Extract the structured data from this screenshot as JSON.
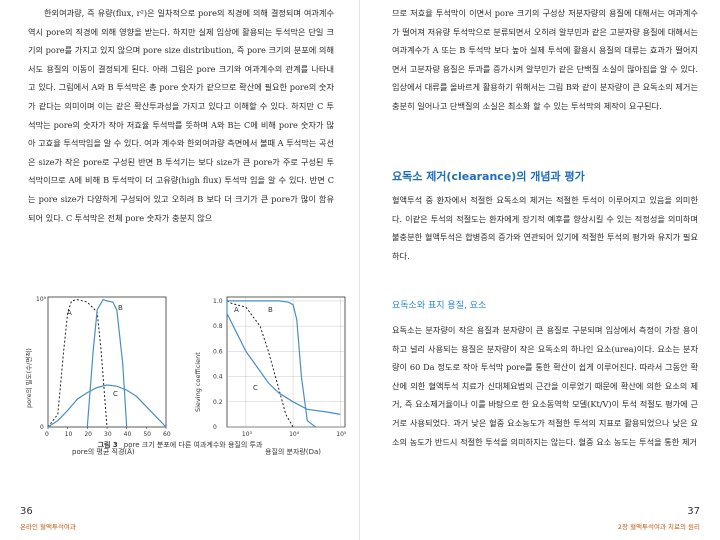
{
  "left_page": {
    "paragraph": "한외여과량, 즉 유량(flux, r²)은 일차적으로 pore의 직경에 의해 결정되며 여과계수 역시 pore의 직경에 의해 영향을 받는다. 하지만 실제 임상에 활용되는 투석막은 단일 크기의 pore를 가지고 있지 않으며 pore size distribution, 즉 pore 크기의 분포에 의해서도 용질의 이동이 결정되게 된다. 아래 그림은 pore 크기와 여과계수의 관계를 나타내고 있다. 그림에서 A와 B 투석막은 총 pore 숫자가 같으므로 확산에 필요한 pore의 숫자가 같다는 의미이며 이는 같은 확산투과성을 가지고 있다고 이해할 수 있다. 하지만 C 투석막는 pore의 숫자가 작아 저효율 투석막를 뜻하며 A와 B는 C에 비해 pore 숫자가 많아 고효율 투석막임을 알 수 있다. 여과 계수와 한외여과량 측면에서 볼때 A 투석막는 곡선은 size가 작은 pore로 구성된 반면 B 투석기는 보다 size가 큰 pore가 주로 구성된 투석막이므로 A에 비해 B 투석막이 더 고유량(high flux) 투석막 임을 알 수 있다. 반면 C는 pore size가 다양하게 구성되어 있고 오히려 B 보다 더 크기가 큰 pore가 많이 함유되어 있다. C 투석막은 전체 pore 숫자가 충분치 않으",
    "page_number": "36",
    "running_head": "온라인 혈액투석여과"
  },
  "figure": {
    "caption_label": "그림 3",
    "caption_text": "pore 크기 분포에 다른 여과계수와 용질의 투과",
    "left_plot": {
      "ylabel": "pore의 밀도(수/면적)",
      "xlabel": "pore의 평균 직경(Å)",
      "ytick_top": "10⁹",
      "ytick_bottom": "0",
      "xticks": [
        "0",
        "10",
        "20",
        "30",
        "40",
        "50",
        "60"
      ],
      "labels": {
        "A": "A",
        "B": "B",
        "C": "C"
      }
    },
    "right_plot": {
      "ylabel": "Sieving coefficient",
      "xlabel": "용질의 분자량(Da)",
      "yticks": [
        "1.0",
        "0.8",
        "0.6",
        "0.4",
        "0.2",
        "0"
      ],
      "xticks": [
        "10³",
        "10⁴",
        "10⁵"
      ],
      "labels": {
        "A": "A",
        "B": "B",
        "C": "C"
      }
    }
  },
  "chart_data": [
    {
      "type": "line",
      "xlabel": "pore의 평균 직경(Å)",
      "ylabel": "pore의 밀도(수/면적)",
      "xlim": [
        0,
        60
      ],
      "series": [
        {
          "name": "A",
          "style": "dotted",
          "x": [
            0,
            5,
            8,
            10,
            12,
            15,
            20,
            25,
            27,
            30
          ],
          "y": [
            0,
            10,
            60,
            90,
            99,
            100,
            98,
            90,
            60,
            0
          ]
        },
        {
          "name": "B",
          "style": "solid",
          "x": [
            20,
            23,
            25,
            28,
            30,
            33,
            35,
            38,
            40
          ],
          "y": [
            0,
            60,
            92,
            100,
            99,
            98,
            92,
            50,
            0
          ]
        },
        {
          "name": "C",
          "style": "solid",
          "x": [
            0,
            5,
            10,
            15,
            20,
            25,
            30,
            35,
            40,
            45,
            50,
            55,
            60
          ],
          "y": [
            0,
            5,
            13,
            22,
            27,
            31,
            33,
            32,
            29,
            24,
            16,
            8,
            0
          ]
        }
      ]
    },
    {
      "type": "line",
      "xlabel": "용질의 분자량(Da)",
      "ylabel": "Sieving coefficient",
      "ylim": [
        0,
        1.0
      ],
      "x_scale": "log",
      "series": [
        {
          "name": "A",
          "style": "dotted",
          "x": [
            100,
            500,
            1000,
            2000,
            3000,
            5000,
            7000,
            10000
          ],
          "y": [
            1.0,
            0.98,
            0.95,
            0.8,
            0.6,
            0.3,
            0.1,
            0.0
          ]
        },
        {
          "name": "B",
          "style": "solid",
          "x": [
            100,
            1000,
            5000,
            8000,
            10000,
            12000,
            15000,
            20000,
            30000
          ],
          "y": [
            1.0,
            1.0,
            1.0,
            0.99,
            0.97,
            0.85,
            0.4,
            0.05,
            0.0
          ]
        },
        {
          "name": "C",
          "style": "solid",
          "x": [
            100,
            300,
            1000,
            3000,
            5000,
            10000,
            20000,
            50000,
            100000
          ],
          "y": [
            1.0,
            0.9,
            0.6,
            0.35,
            0.27,
            0.2,
            0.14,
            0.12,
            0.1
          ]
        }
      ]
    }
  ],
  "right_page": {
    "paragraph1": "므로 저효율 투석막이 이면서 pore 크기의 구성상 저분자량의 용질에 대해서는 여과계수가 떨어져 저유량 투석막으로 분류되면서 오히려 알부민과 같은 고분자량 용질에 대해서는 여과계수가 A 또는 B 투석막 보다 높아 실제 투석에 활용시 용질의 대류는 효과가 떨어지면서 고분자량 용질은 투과를 증가시켜 알부민가 같은 단백질 소실이 많아짐을 알 수 있다. 임상에서 대류를 올바르게 활용하기 위해서는 그림 B와 같이 분자량이 큰 요독소의 제거는 충분히 일어나고 단백질의 소실은 최소화 할 수 있는 투석막의 제작이 요구된다.",
    "heading1": "요독소 제거(clearance)의 개념과 평가",
    "paragraph2": "혈액투석 중 환자에서 적절한 요독소의 제거는 적절한 투석이 이루어지고 있음을 의미한다. 이같은 투석의 적절도는 환자에게 장기적 예후를 향상시킬 수 있는 적정성을 의미하며 불충분한 혈액투석은 합병증의 증가와 연관되어 있기에 적절한 투석의 평가와 유지가 필요하다.",
    "heading2": "요독소와 표지 용질, 요소",
    "paragraph3": "요독소는 분자량이 작은 용질과 분자량이 큰 용질로 구분되며 임상에서 측정이 가장 용이하고 널리 사용되는 용질은 분자량이 작은 요독소의 하나인 요소(urea)이다. 요소는 분자량이 60 Da 정도로 작아 투석막 pore를 통한 확산이 쉽게 이루어진다. 따라서 그동안 확산에 의한 혈액투석 치료가 신대체요법의 근간을 이루었기 때문에 확산에 의한 요소의 제거, 즉 요소제거율이나 이를 바탕으로 한 요소동역학 모델(Kt/V)이 투석 적절도 평가에 근거로 사용되었다. 과거 낮은 혈중 요소농도가 적절한 투석의 지표로 활용되었으나 낮은 요소의 농도가 반드시 적절한 투석을 의미하지는 않는다. 혈중 요소 농도는 투석을 통한 제거",
    "page_number": "37",
    "running_head": "2장 혈액투석여과 치료의 원리"
  }
}
